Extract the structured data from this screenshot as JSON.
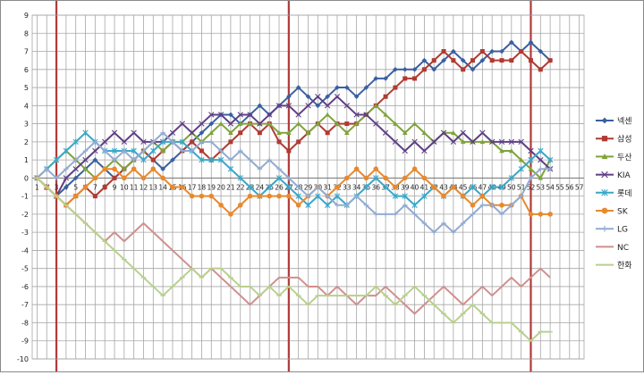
{
  "chart_data": {
    "type": "line",
    "title": "",
    "xlabel": "",
    "ylabel": "",
    "ylim": [
      -10,
      9
    ],
    "y_ticks": [
      9,
      8,
      7,
      6,
      5,
      4,
      3,
      2,
      1,
      0,
      -1,
      -2,
      -3,
      -4,
      -5,
      -6,
      -7,
      -8,
      -9,
      -10
    ],
    "x_ticks": [
      "1",
      "2",
      "3",
      "4",
      "5",
      "6",
      "7",
      "8",
      "9",
      "10",
      "11",
      "12",
      "13",
      "14",
      "15",
      "16",
      "17",
      "18",
      "19",
      "20",
      "21",
      "22",
      "23",
      "24",
      "25",
      "26",
      "27",
      "28",
      "29",
      "30",
      "31",
      "32",
      "33",
      "34",
      "35",
      "36",
      "37",
      "38",
      "39",
      "40",
      "41",
      "42",
      "43",
      "44",
      "45",
      "46",
      "47",
      "48",
      "49",
      "50",
      "51",
      "52",
      "53",
      "54",
      "55",
      "56",
      "57"
    ],
    "grid": true,
    "legend_position": "right",
    "reference_lines_x": [
      3,
      27,
      52
    ],
    "reference_line_color": "#b03a3a",
    "series": [
      {
        "name": "넥센",
        "color": "#3a5fa0",
        "marker": "diamond",
        "values": [
          0,
          -0.5,
          -1,
          -0.5,
          0,
          0.5,
          1,
          0.5,
          0,
          0.5,
          1,
          1.5,
          1,
          0.5,
          1,
          1.5,
          2,
          2.5,
          3,
          3.5,
          3.5,
          3,
          3.5,
          4,
          3.5,
          4,
          4.5,
          5,
          4.5,
          4,
          4.5,
          5,
          5,
          4.5,
          5,
          5.5,
          5.5,
          6,
          6,
          6,
          6.5,
          6,
          6.5,
          7,
          6.5,
          6,
          6.5,
          7,
          7,
          7.5,
          7,
          7.5,
          7,
          6.5
        ]
      },
      {
        "name": "삼성",
        "color": "#b03a32",
        "marker": "square",
        "values": [
          0,
          -0.5,
          -1,
          -1.5,
          -1,
          -0.5,
          -1,
          -0.5,
          0,
          0.5,
          1,
          1.5,
          1,
          1.5,
          2,
          1.5,
          2,
          1.5,
          1,
          1.5,
          2,
          2.5,
          3,
          2.5,
          3,
          2,
          1.5,
          2,
          2.5,
          3,
          2.5,
          3,
          3,
          3,
          3.5,
          4,
          4.5,
          5,
          5.5,
          5.5,
          6,
          6.5,
          7,
          6.5,
          6,
          6.5,
          7,
          6.5,
          6.5,
          6.5,
          7,
          6.5,
          6,
          6.5
        ]
      },
      {
        "name": "두산",
        "color": "#7fa33a",
        "marker": "triangle",
        "values": [
          0,
          0.5,
          1,
          1.5,
          1,
          0.5,
          0,
          0.5,
          1,
          0.5,
          1,
          1.5,
          2,
          1.5,
          2,
          2,
          2.5,
          2,
          2.5,
          3,
          2.5,
          3,
          3,
          3,
          3,
          2.5,
          2.5,
          3,
          2.5,
          3,
          3.5,
          3,
          2.5,
          3,
          3.5,
          4,
          3.5,
          3,
          2.5,
          3,
          2.5,
          2,
          2.5,
          2.5,
          2,
          2,
          2,
          2,
          1.5,
          1.5,
          1,
          0.5,
          0,
          1
        ]
      },
      {
        "name": "KIA",
        "color": "#5e3f85",
        "marker": "x",
        "values": [
          0,
          -0.5,
          -1,
          0,
          0.5,
          1,
          1.5,
          2,
          2.5,
          2,
          2.5,
          2,
          2,
          2,
          2.5,
          3,
          2.5,
          3,
          3.5,
          3.5,
          3,
          3.5,
          3.5,
          3,
          3.5,
          4,
          4,
          3.5,
          4,
          4.5,
          4,
          4.5,
          4,
          3.5,
          3.5,
          3,
          2.5,
          2,
          1.5,
          2,
          1.5,
          2,
          2.5,
          2,
          2.5,
          2,
          2.5,
          2,
          2,
          2,
          2,
          1.5,
          1,
          0.5
        ]
      },
      {
        "name": "롯데",
        "color": "#3aa7c9",
        "marker": "star",
        "values": [
          0,
          0.5,
          1,
          1.5,
          2,
          2.5,
          2,
          1.5,
          1.5,
          1.5,
          1.5,
          1,
          1.5,
          2,
          2,
          2,
          1.5,
          1,
          1,
          1,
          0.5,
          0,
          -0.5,
          -1,
          -0.5,
          0,
          -0.5,
          -1,
          -1.5,
          -1,
          -1.5,
          -1,
          -1.5,
          -1,
          -0.5,
          0,
          -0.5,
          -1,
          -1,
          -1.5,
          -1,
          -0.5,
          -1,
          -0.5,
          -1,
          -0.5,
          -1,
          -0.5,
          -0.5,
          0,
          0.5,
          1,
          1.5,
          1
        ]
      },
      {
        "name": "SK",
        "color": "#e8892e",
        "marker": "circle",
        "values": [
          0,
          -0.5,
          -1,
          -1.5,
          -1,
          -0.5,
          0,
          0.5,
          0.5,
          0,
          0.5,
          0,
          0.5,
          0,
          -0.5,
          -0.5,
          -1,
          -1,
          -1,
          -1.5,
          -2,
          -1.5,
          -1,
          -1,
          -1,
          -1,
          -1,
          -1.5,
          -1,
          -0.5,
          -1,
          -0.5,
          0,
          0.5,
          0,
          0.5,
          0,
          -0.5,
          0,
          0.5,
          0,
          -0.5,
          -1,
          -0.5,
          -1,
          -1.5,
          -1,
          -1.5,
          -1.5,
          -1.5,
          -1,
          -2,
          -2,
          -2
        ]
      },
      {
        "name": "LG",
        "color": "#92abd0",
        "marker": "plus",
        "values": [
          0,
          0.5,
          0,
          0.5,
          1,
          1.5,
          2,
          1.5,
          1,
          1.5,
          1,
          1.5,
          2,
          2.5,
          2,
          1.5,
          1.5,
          2,
          2,
          1.5,
          1,
          1.5,
          1,
          0.5,
          1,
          0.5,
          0,
          -0.5,
          -1,
          -0.5,
          -1,
          -1.5,
          -1.5,
          -1,
          -1.5,
          -2,
          -2,
          -2,
          -1.5,
          -2,
          -2.5,
          -3,
          -2.5,
          -3,
          -2.5,
          -2,
          -1.5,
          -1.5,
          -2,
          -1.5,
          -1,
          0,
          0.5,
          0.5
        ]
      },
      {
        "name": "NC",
        "color": "#cf8f8d",
        "marker": "none",
        "values": [
          0,
          -0.5,
          -1,
          -1.5,
          -2,
          -2.5,
          -3,
          -3.5,
          -3,
          -3.5,
          -3,
          -2.5,
          -3,
          -3.5,
          -4,
          -4.5,
          -5,
          -5.5,
          -5,
          -5.5,
          -6,
          -6.5,
          -7,
          -6.5,
          -6,
          -5.5,
          -5.5,
          -5.5,
          -6,
          -6,
          -6.5,
          -6,
          -6.5,
          -7,
          -6.5,
          -6.5,
          -6,
          -6.5,
          -7,
          -7.5,
          -7,
          -6.5,
          -6,
          -6.5,
          -7,
          -6.5,
          -6,
          -6.5,
          -6,
          -5.5,
          -6,
          -5.5,
          -5,
          -5.5
        ]
      },
      {
        "name": "한화",
        "color": "#b8d08c",
        "marker": "dash",
        "values": [
          0,
          -0.5,
          -1,
          -1.5,
          -2,
          -2.5,
          -3,
          -3.5,
          -4,
          -4.5,
          -5,
          -5.5,
          -6,
          -6.5,
          -6,
          -5.5,
          -5,
          -5.5,
          -5,
          -5,
          -5.5,
          -6,
          -6,
          -6.5,
          -6,
          -6.5,
          -6,
          -6.5,
          -7,
          -6.5,
          -6.5,
          -6.5,
          -6.5,
          -6.5,
          -6.5,
          -6,
          -6.5,
          -7,
          -6.5,
          -6,
          -6.5,
          -7,
          -7.5,
          -8,
          -7.5,
          -7,
          -7.5,
          -8,
          -8,
          -8,
          -8.5,
          -9,
          -8.5,
          -8.5
        ]
      }
    ]
  }
}
